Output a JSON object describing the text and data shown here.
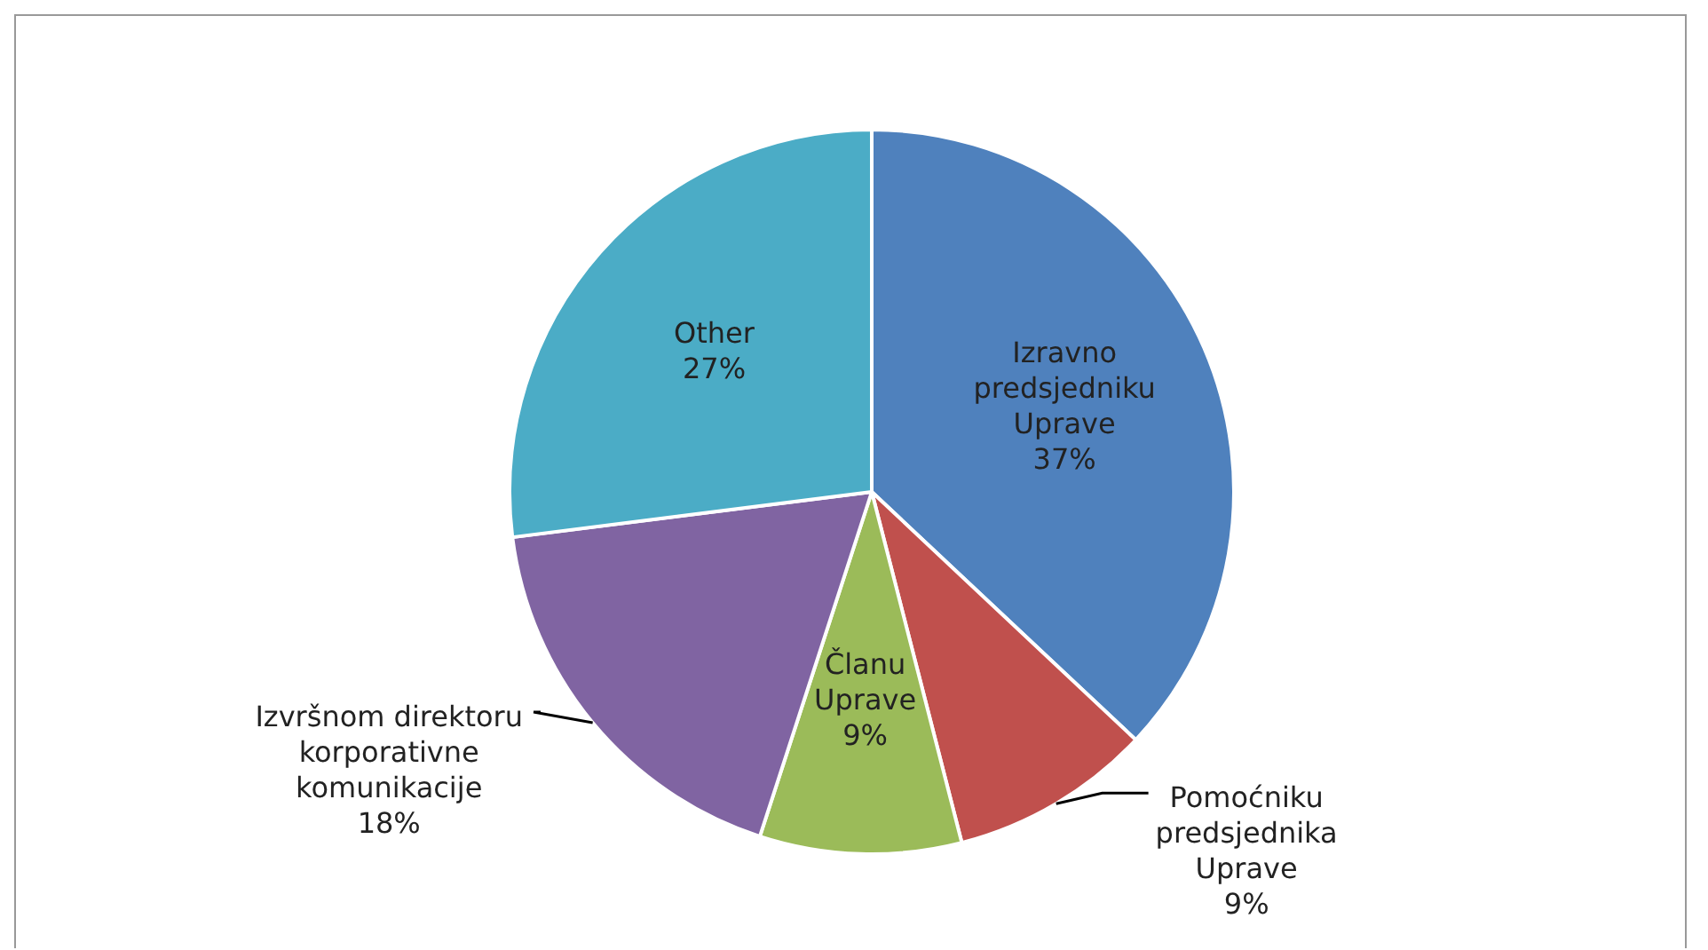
{
  "chart_data": {
    "type": "pie",
    "categories": [
      "Izravno predsjedniku Uprave",
      "Pomoćniku predsjednika Uprave",
      "Članu Uprave",
      "Izvršnom direktoru korporativne komunikacije",
      "Other"
    ],
    "values": [
      37,
      9,
      9,
      18,
      27
    ],
    "value_labels": [
      "37%",
      "9%",
      "9%",
      "18%",
      "27%"
    ],
    "colors": [
      "#4f81bd",
      "#c0504d",
      "#9bbb59",
      "#8064a2",
      "#4bacc6"
    ],
    "legend": false
  }
}
